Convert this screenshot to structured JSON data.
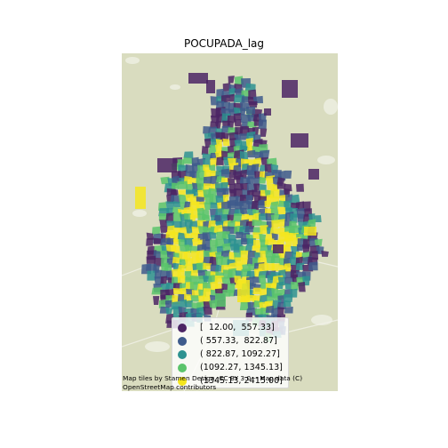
{
  "title": "POCUPADA_lag",
  "palette": {
    "basemap": "#d9dcbf",
    "c1": "#4b2464",
    "c2": "#3e5b8c",
    "c3": "#2d9290",
    "c4": "#5bc46b",
    "c5": "#f4e61e"
  },
  "legend": {
    "items": [
      {
        "label": "[  12.00,  557.33]",
        "color": "#4b2464"
      },
      {
        "label": "( 557.33,  822.87]",
        "color": "#3e5b8c"
      },
      {
        "label": "( 822.87, 1092.27]",
        "color": "#2d9290"
      },
      {
        "label": "(1092.27, 1345.13]",
        "color": "#5bc46b"
      },
      {
        "label": "(1345.13, 2415.00]",
        "color": "#f4e61e"
      }
    ]
  },
  "attribution": {
    "line1": "Map tiles by Stamen Design, CC BY 3.0 -- Map data (C)",
    "line2": "OpenStreetMap contributors"
  }
}
